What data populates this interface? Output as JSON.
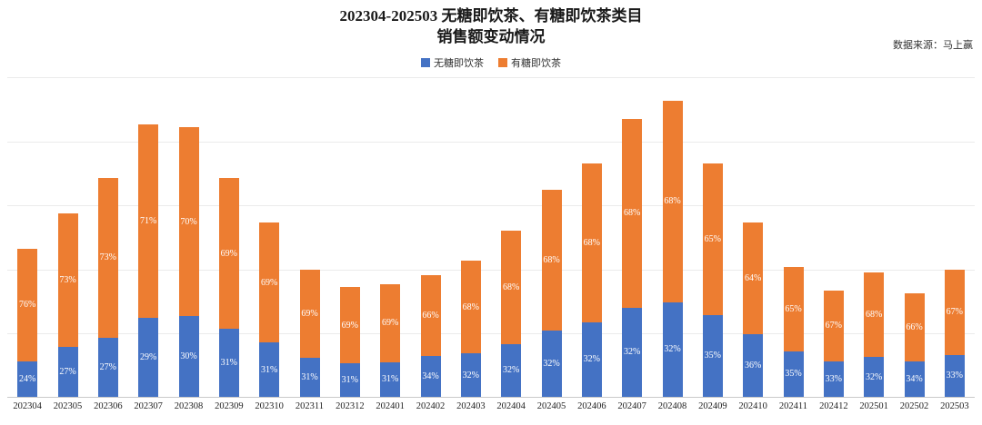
{
  "title": {
    "line1": "202304-202503 无糖即饮茶、有糖即饮茶类目",
    "line2": "销售额变动情况"
  },
  "source_note": "数据来源：马上赢",
  "legend": [
    {
      "label": "无糖即饮茶",
      "color": "#4472C4"
    },
    {
      "label": "有糖即饮茶",
      "color": "#ED7D31"
    }
  ],
  "chart_data": {
    "type": "bar",
    "stacked": true,
    "title": "202304-202503 无糖即饮茶、有糖即饮茶类目 销售额变动情况",
    "legend_position": "top",
    "grid": true,
    "categories": [
      "202304",
      "202305",
      "202306",
      "202307",
      "202308",
      "202309",
      "202310",
      "202311",
      "202312",
      "202401",
      "202402",
      "202403",
      "202404",
      "202405",
      "202406",
      "202407",
      "202408",
      "202409",
      "202410",
      "202411",
      "202412",
      "202501",
      "202502",
      "202503"
    ],
    "series": [
      {
        "name": "无糖即饮茶",
        "color": "#4472C4",
        "share_pct": [
          24,
          27,
          27,
          29,
          30,
          31,
          31,
          31,
          31,
          31,
          34,
          32,
          32,
          32,
          32,
          32,
          32,
          35,
          36,
          35,
          33,
          32,
          34,
          33
        ]
      },
      {
        "name": "有糖即饮茶",
        "color": "#ED7D31",
        "share_pct": [
          76,
          73,
          73,
          71,
          70,
          69,
          69,
          69,
          69,
          69,
          66,
          68,
          68,
          68,
          68,
          68,
          68,
          65,
          64,
          65,
          67,
          68,
          66,
          67
        ]
      }
    ],
    "totals_relative": [
      50,
      62,
      74,
      92,
      91,
      74,
      59,
      43,
      37,
      38,
      41,
      46,
      56,
      70,
      79,
      94,
      100,
      79,
      59,
      44,
      36,
      42,
      35,
      43
    ],
    "y_axis": {
      "labels_visible": false,
      "relative_max": 108,
      "gridline_count": 5,
      "note": "y-axis has no tick labels; bar totals estimated relative to tallest bar 202408 = 100"
    },
    "label_format": "percent_inside_segments"
  }
}
